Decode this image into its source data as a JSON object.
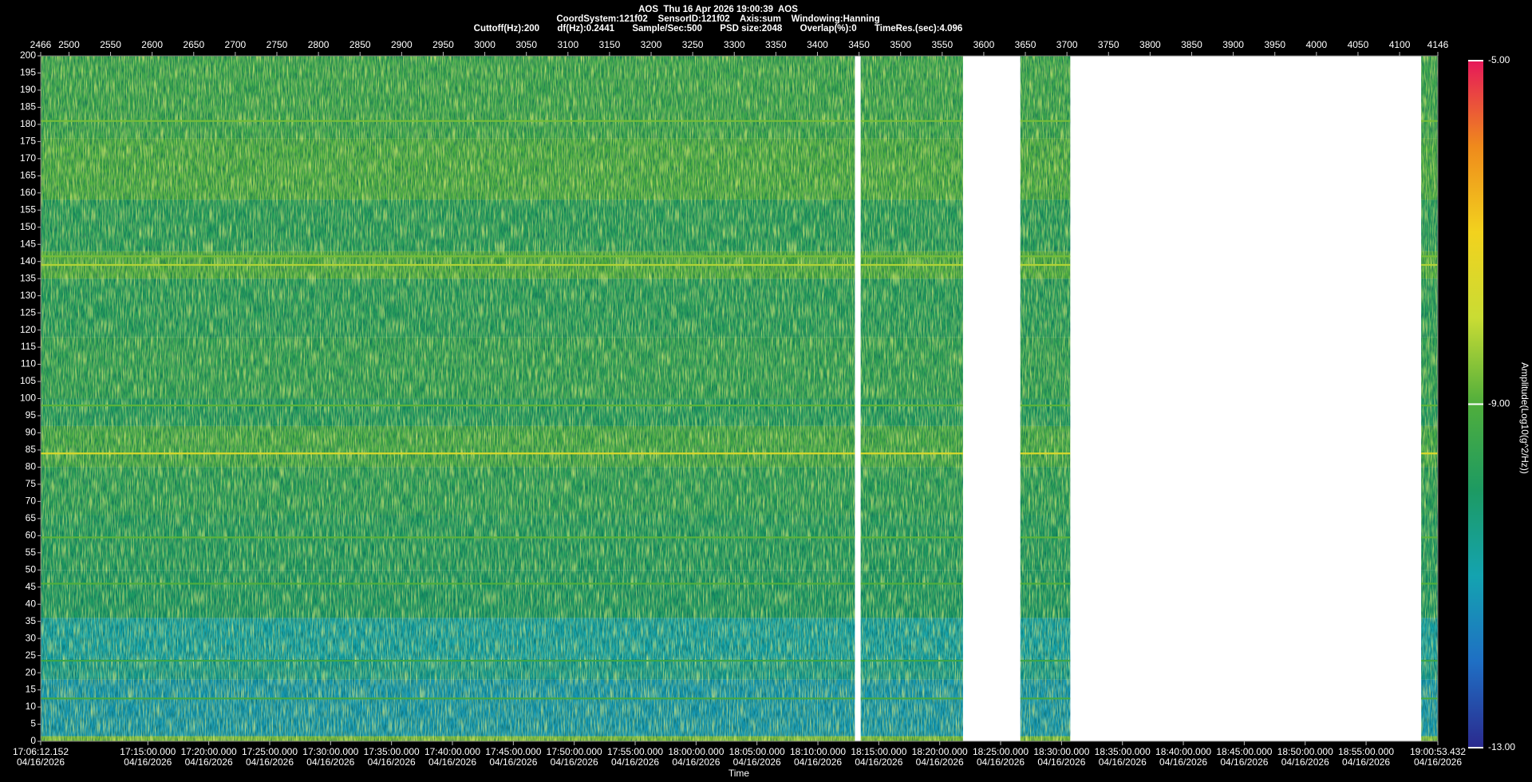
{
  "chart_data": {
    "type": "spectrogram",
    "title": "AOS  Thu 16 Apr 2026 19:00:39  AOS",
    "subtitle": "CoordSystem:121f02    SensorID:121f02    Axis:sum    Windowing:Hanning",
    "settings_line": "Cuttoff(Hz):200       df(Hz):0.2441       Sample/Sec:500       PSD size:2048       Overlap(%):0       TimeRes.(sec):4.096",
    "xlabel": "Time",
    "xlim": [
      2466,
      4146
    ],
    "xticks": [
      2466,
      2500,
      2550,
      2600,
      2650,
      2700,
      2750,
      2800,
      2850,
      2900,
      2950,
      3000,
      3050,
      3100,
      3150,
      3200,
      3250,
      3300,
      3350,
      3400,
      3450,
      3500,
      3550,
      3600,
      3650,
      3700,
      3750,
      3800,
      3850,
      3900,
      3950,
      4000,
      4050,
      4100,
      4146
    ],
    "time_ticks": [
      {
        "value": 2466,
        "label": "17:06:12.152",
        "date": "04/16/2026"
      },
      {
        "value": 2594.87,
        "label": "17:15:00.000",
        "date": "04/16/2026"
      },
      {
        "value": 2668.11,
        "label": "17:20:00.000",
        "date": "04/16/2026"
      },
      {
        "value": 2741.36,
        "label": "17:25:00.000",
        "date": "04/16/2026"
      },
      {
        "value": 2814.6,
        "label": "17:30:00.000",
        "date": "04/16/2026"
      },
      {
        "value": 2887.84,
        "label": "17:35:00.000",
        "date": "04/16/2026"
      },
      {
        "value": 2961.08,
        "label": "17:40:00.000",
        "date": "04/16/2026"
      },
      {
        "value": 3034.33,
        "label": "17:45:00.000",
        "date": "04/16/2026"
      },
      {
        "value": 3107.57,
        "label": "17:50:00.000",
        "date": "04/16/2026"
      },
      {
        "value": 3180.81,
        "label": "17:55:00.000",
        "date": "04/16/2026"
      },
      {
        "value": 3254.05,
        "label": "18:00:00.000",
        "date": "04/16/2026"
      },
      {
        "value": 3327.29,
        "label": "18:05:00.000",
        "date": "04/16/2026"
      },
      {
        "value": 3400.54,
        "label": "18:10:00.000",
        "date": "04/16/2026"
      },
      {
        "value": 3473.78,
        "label": "18:15:00.000",
        "date": "04/16/2026"
      },
      {
        "value": 3547.02,
        "label": "18:20:00.000",
        "date": "04/16/2026"
      },
      {
        "value": 3620.26,
        "label": "18:25:00.000",
        "date": "04/16/2026"
      },
      {
        "value": 3693.5,
        "label": "18:30:00.000",
        "date": "04/16/2026"
      },
      {
        "value": 3766.75,
        "label": "18:35:00.000",
        "date": "04/16/2026"
      },
      {
        "value": 3839.99,
        "label": "18:40:00.000",
        "date": "04/16/2026"
      },
      {
        "value": 3913.23,
        "label": "18:45:00.000",
        "date": "04/16/2026"
      },
      {
        "value": 3986.47,
        "label": "18:50:00.000",
        "date": "04/16/2026"
      },
      {
        "value": 4059.71,
        "label": "18:55:00.000",
        "date": "04/16/2026"
      },
      {
        "value": 4146,
        "label": "19:00:53.432",
        "date": "04/16/2026"
      }
    ],
    "ylim": [
      0,
      200
    ],
    "yticks": [
      0,
      5,
      10,
      15,
      20,
      25,
      30,
      35,
      40,
      45,
      50,
      55,
      60,
      65,
      70,
      75,
      80,
      85,
      90,
      95,
      100,
      105,
      110,
      115,
      120,
      125,
      130,
      135,
      140,
      145,
      150,
      155,
      160,
      165,
      170,
      175,
      180,
      185,
      190,
      195,
      200
    ],
    "segments": [
      [
        2466,
        3445
      ],
      [
        3452,
        3575
      ],
      [
        3644,
        3704
      ],
      [
        4126,
        4146
      ]
    ],
    "bands": [
      {
        "range": [
          0,
          1.5
        ],
        "value": -8.6
      },
      {
        "range": [
          1.5,
          18
        ],
        "value": -11.2
      },
      {
        "range": [
          18,
          24
        ],
        "value": -10.6
      },
      {
        "range": [
          24,
          36
        ],
        "value": -10.9
      },
      {
        "range": [
          36,
          50
        ],
        "value": -10.0
      },
      {
        "range": [
          50,
          66
        ],
        "value": -9.9
      },
      {
        "range": [
          66,
          80
        ],
        "value": -9.7
      },
      {
        "range": [
          80,
          92
        ],
        "value": -9.2
      },
      {
        "range": [
          92,
          100
        ],
        "value": -9.9
      },
      {
        "range": [
          100,
          118
        ],
        "value": -9.6
      },
      {
        "range": [
          118,
          135
        ],
        "value": -9.8
      },
      {
        "range": [
          135,
          143
        ],
        "value": -9.0
      },
      {
        "range": [
          143,
          158
        ],
        "value": -9.8
      },
      {
        "range": [
          158,
          176
        ],
        "value": -9.1
      },
      {
        "range": [
          176,
          200
        ],
        "value": -9.4
      }
    ],
    "lines": [
      {
        "freq": 84,
        "value": -7.6
      },
      {
        "freq": 139,
        "value": -8.2
      },
      {
        "freq": 141.5,
        "value": -8.7
      },
      {
        "freq": 181,
        "value": -8.7
      },
      {
        "freq": 98,
        "value": -8.9
      },
      {
        "freq": 59.5,
        "value": -8.9
      },
      {
        "freq": 46,
        "value": -9.0
      },
      {
        "freq": 23.5,
        "value": -9.4
      },
      {
        "freq": 12.5,
        "value": -9.2
      }
    ],
    "clim": [
      -13,
      -5
    ],
    "colormap": [
      "#2b2a8e",
      "#1f6fc4",
      "#14a3b0",
      "#1d9a62",
      "#4fae3c",
      "#c9dc34",
      "#f2d21e",
      "#ef8a1c",
      "#e6185a"
    ],
    "cticks": [
      {
        "value": -5,
        "label": "-5.00"
      },
      {
        "value": -9,
        "label": "-9.00"
      },
      {
        "value": -13,
        "label": "-13.00"
      }
    ],
    "colorbar_label": "Amplitude(Log10(g^2/Hz))"
  }
}
